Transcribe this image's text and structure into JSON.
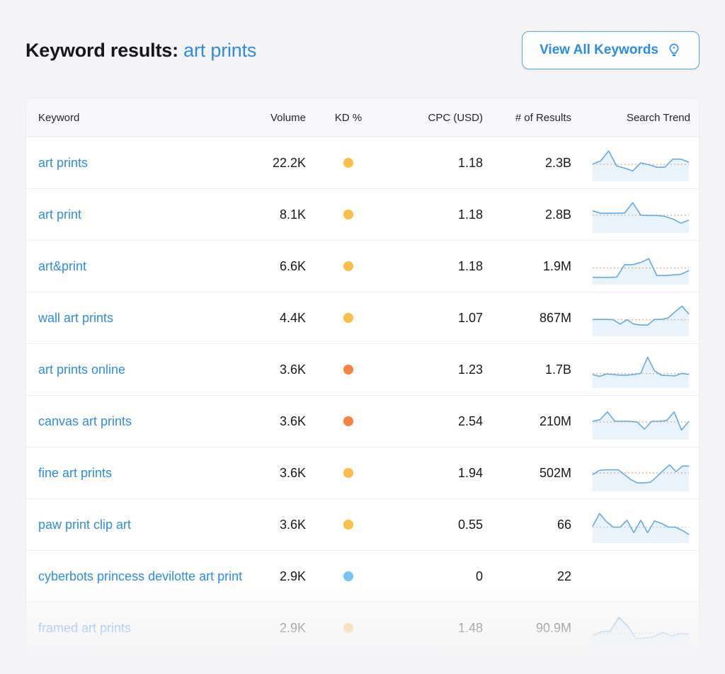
{
  "header": {
    "title": "Keyword results:",
    "query": "art prints",
    "view_all_button": "View All Keywords",
    "view_all_icon": "lightbulb-icon"
  },
  "colors": {
    "accent_blue": "#2f8ce4",
    "kd_yellow": "#FCBE4B",
    "kd_orange": "#F8823F",
    "kd_blue": "#74C5F2",
    "spark_line": "#64abe6",
    "spark_fill": "#e9f3fb",
    "baseline_tan": "#e2b28f",
    "baseline_gray": "#c9ced6",
    "page_bg": "#f4f4f6"
  },
  "table": {
    "columns": [
      "Keyword",
      "Volume",
      "KD %",
      "CPC (USD)",
      "# of Results",
      "Search Trend"
    ],
    "rows": [
      {
        "keyword": "art prints",
        "volume": "22.2K",
        "kd_dot_color": "#FCBE4B",
        "cpc": "1.18",
        "results": "2.3B",
        "trend": [
          46,
          56,
          88,
          40,
          33,
          24,
          50,
          44,
          36,
          36,
          62,
          62,
          52
        ],
        "trend_baseline": 45,
        "baseline_color": "#e2b28f"
      },
      {
        "keyword": "art print",
        "volume": "8.1K",
        "kd_dot_color": "#FCBE4B",
        "cpc": "1.18",
        "results": "2.8B",
        "trend": [
          62,
          54,
          54,
          54,
          55,
          88,
          48,
          47,
          47,
          44,
          36,
          22,
          32
        ],
        "trend_baseline": 48,
        "baseline_color": "#e2b28f"
      },
      {
        "keyword": "art&print",
        "volume": "6.6K",
        "kd_dot_color": "#FCBE4B",
        "cpc": "1.18",
        "results": "1.9M",
        "trend": [
          14,
          14,
          14,
          15,
          55,
          55,
          62,
          74,
          20,
          20,
          22,
          24,
          36
        ],
        "trend_baseline": 44,
        "baseline_color": "#e2b28f"
      },
      {
        "keyword": "wall art prints",
        "volume": "4.4K",
        "kd_dot_color": "#FCBE4B",
        "cpc": "1.07",
        "results": "867M",
        "trend": [
          45,
          45,
          45,
          44,
          30,
          44,
          30,
          27,
          27,
          45,
          45,
          50,
          70,
          88,
          62
        ],
        "trend_baseline": 44,
        "baseline_color": "#e2b28f"
      },
      {
        "keyword": "art prints online",
        "volume": "3.6K",
        "kd_dot_color": "#F8823F",
        "cpc": "1.23",
        "results": "1.7B",
        "trend": [
          34,
          28,
          36,
          34,
          32,
          32,
          34,
          38,
          90,
          46,
          32,
          31,
          30,
          38,
          34
        ],
        "trend_baseline": 37,
        "baseline_color": "#e2b28f"
      },
      {
        "keyword": "canvas art prints",
        "volume": "3.6K",
        "kd_dot_color": "#F8823F",
        "cpc": "2.54",
        "results": "210M",
        "trend": [
          50,
          55,
          80,
          50,
          50,
          50,
          48,
          25,
          50,
          50,
          52,
          80,
          22,
          50
        ],
        "trend_baseline": 48,
        "baseline_color": "#e2b28f"
      },
      {
        "keyword": "fine art prints",
        "volume": "3.6K",
        "kd_dot_color": "#FCBE4B",
        "cpc": "1.94",
        "results": "502M",
        "trend": [
          44,
          58,
          60,
          60,
          60,
          44,
          28,
          18,
          18,
          20,
          38,
          58,
          76,
          54,
          72,
          72
        ],
        "trend_baseline": 50,
        "baseline_color": "#e2b28f"
      },
      {
        "keyword": "paw print clip art",
        "volume": "3.6K",
        "kd_dot_color": "#FCBE4B",
        "cpc": "0.55",
        "results": "66",
        "trend": [
          44,
          86,
          60,
          42,
          42,
          64,
          24,
          64,
          24,
          62,
          54,
          42,
          42,
          32,
          18
        ],
        "trend_baseline": 42,
        "baseline_color": "#c9ced6"
      },
      {
        "keyword": "cyberbots princess devilotte art print",
        "volume": "2.9K",
        "kd_dot_color": "#74C5F2",
        "cpc": "0",
        "results": "22",
        "trend": [],
        "trend_baseline": 0,
        "baseline_color": "#e2b28f"
      },
      {
        "keyword": "framed art prints",
        "volume": "2.9K",
        "kd_dot_color": "#FCBE4B",
        "cpc": "1.48",
        "results": "90.9M",
        "trend": [
          28,
          40,
          42,
          86,
          58,
          18,
          20,
          24,
          38,
          26,
          34,
          32
        ],
        "trend_baseline": 35,
        "baseline_color": "#e2b28f"
      }
    ]
  }
}
